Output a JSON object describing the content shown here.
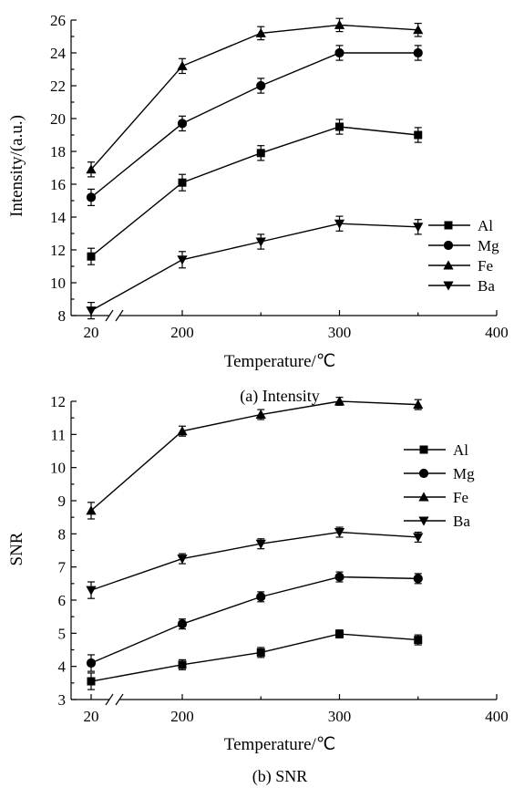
{
  "chart_data": [
    {
      "type": "line",
      "caption": "(a) Intensity",
      "xlabel": "Temperature/℃",
      "ylabel": "Intensity/(a.u.)",
      "x": [
        20,
        200,
        250,
        300,
        350
      ],
      "x_ticks": [
        "20",
        "200",
        "300",
        "400"
      ],
      "x_break": true,
      "ylim": [
        8,
        26
      ],
      "y_ticks": [
        "8",
        "10",
        "12",
        "14",
        "16",
        "18",
        "20",
        "22",
        "24",
        "26"
      ],
      "legend_position": "right",
      "series": [
        {
          "name": "Al",
          "marker": "square",
          "values": [
            11.6,
            16.1,
            17.9,
            19.5,
            19.0
          ],
          "error": [
            0.5,
            0.5,
            0.45,
            0.45,
            0.45
          ]
        },
        {
          "name": "Mg",
          "marker": "circle",
          "values": [
            15.2,
            19.7,
            22.0,
            24.0,
            24.0
          ],
          "error": [
            0.5,
            0.45,
            0.45,
            0.45,
            0.45
          ]
        },
        {
          "name": "Fe",
          "marker": "triangle-up",
          "values": [
            16.9,
            23.2,
            25.2,
            25.7,
            25.4
          ],
          "error": [
            0.45,
            0.45,
            0.4,
            0.4,
            0.4
          ]
        },
        {
          "name": "Ba",
          "marker": "triangle-down",
          "values": [
            8.3,
            11.4,
            12.5,
            13.6,
            13.4
          ],
          "error": [
            0.5,
            0.5,
            0.45,
            0.45,
            0.45
          ]
        }
      ]
    },
    {
      "type": "line",
      "caption": "(b) SNR",
      "xlabel": "Temperature/℃",
      "ylabel": "SNR",
      "x": [
        20,
        200,
        250,
        300,
        350
      ],
      "x_ticks": [
        "20",
        "200",
        "300",
        "400"
      ],
      "x_break": true,
      "ylim": [
        3,
        12
      ],
      "y_ticks": [
        "3",
        "4",
        "5",
        "6",
        "7",
        "8",
        "9",
        "10",
        "11",
        "12"
      ],
      "legend_position": "top-right",
      "series": [
        {
          "name": "Al",
          "marker": "square",
          "values": [
            3.55,
            4.05,
            4.42,
            4.98,
            4.8
          ],
          "error": [
            0.25,
            0.15,
            0.15,
            0.12,
            0.15
          ]
        },
        {
          "name": "Mg",
          "marker": "circle",
          "values": [
            4.1,
            5.28,
            6.1,
            6.7,
            6.65
          ],
          "error": [
            0.25,
            0.15,
            0.15,
            0.15,
            0.15
          ]
        },
        {
          "name": "Fe",
          "marker": "triangle-up",
          "values": [
            8.7,
            11.1,
            11.6,
            12.0,
            11.9
          ],
          "error": [
            0.25,
            0.15,
            0.15,
            0.12,
            0.15
          ]
        },
        {
          "name": "Ba",
          "marker": "triangle-down",
          "values": [
            6.3,
            7.25,
            7.7,
            8.05,
            7.9
          ],
          "error": [
            0.25,
            0.15,
            0.15,
            0.15,
            0.15
          ]
        }
      ]
    }
  ]
}
